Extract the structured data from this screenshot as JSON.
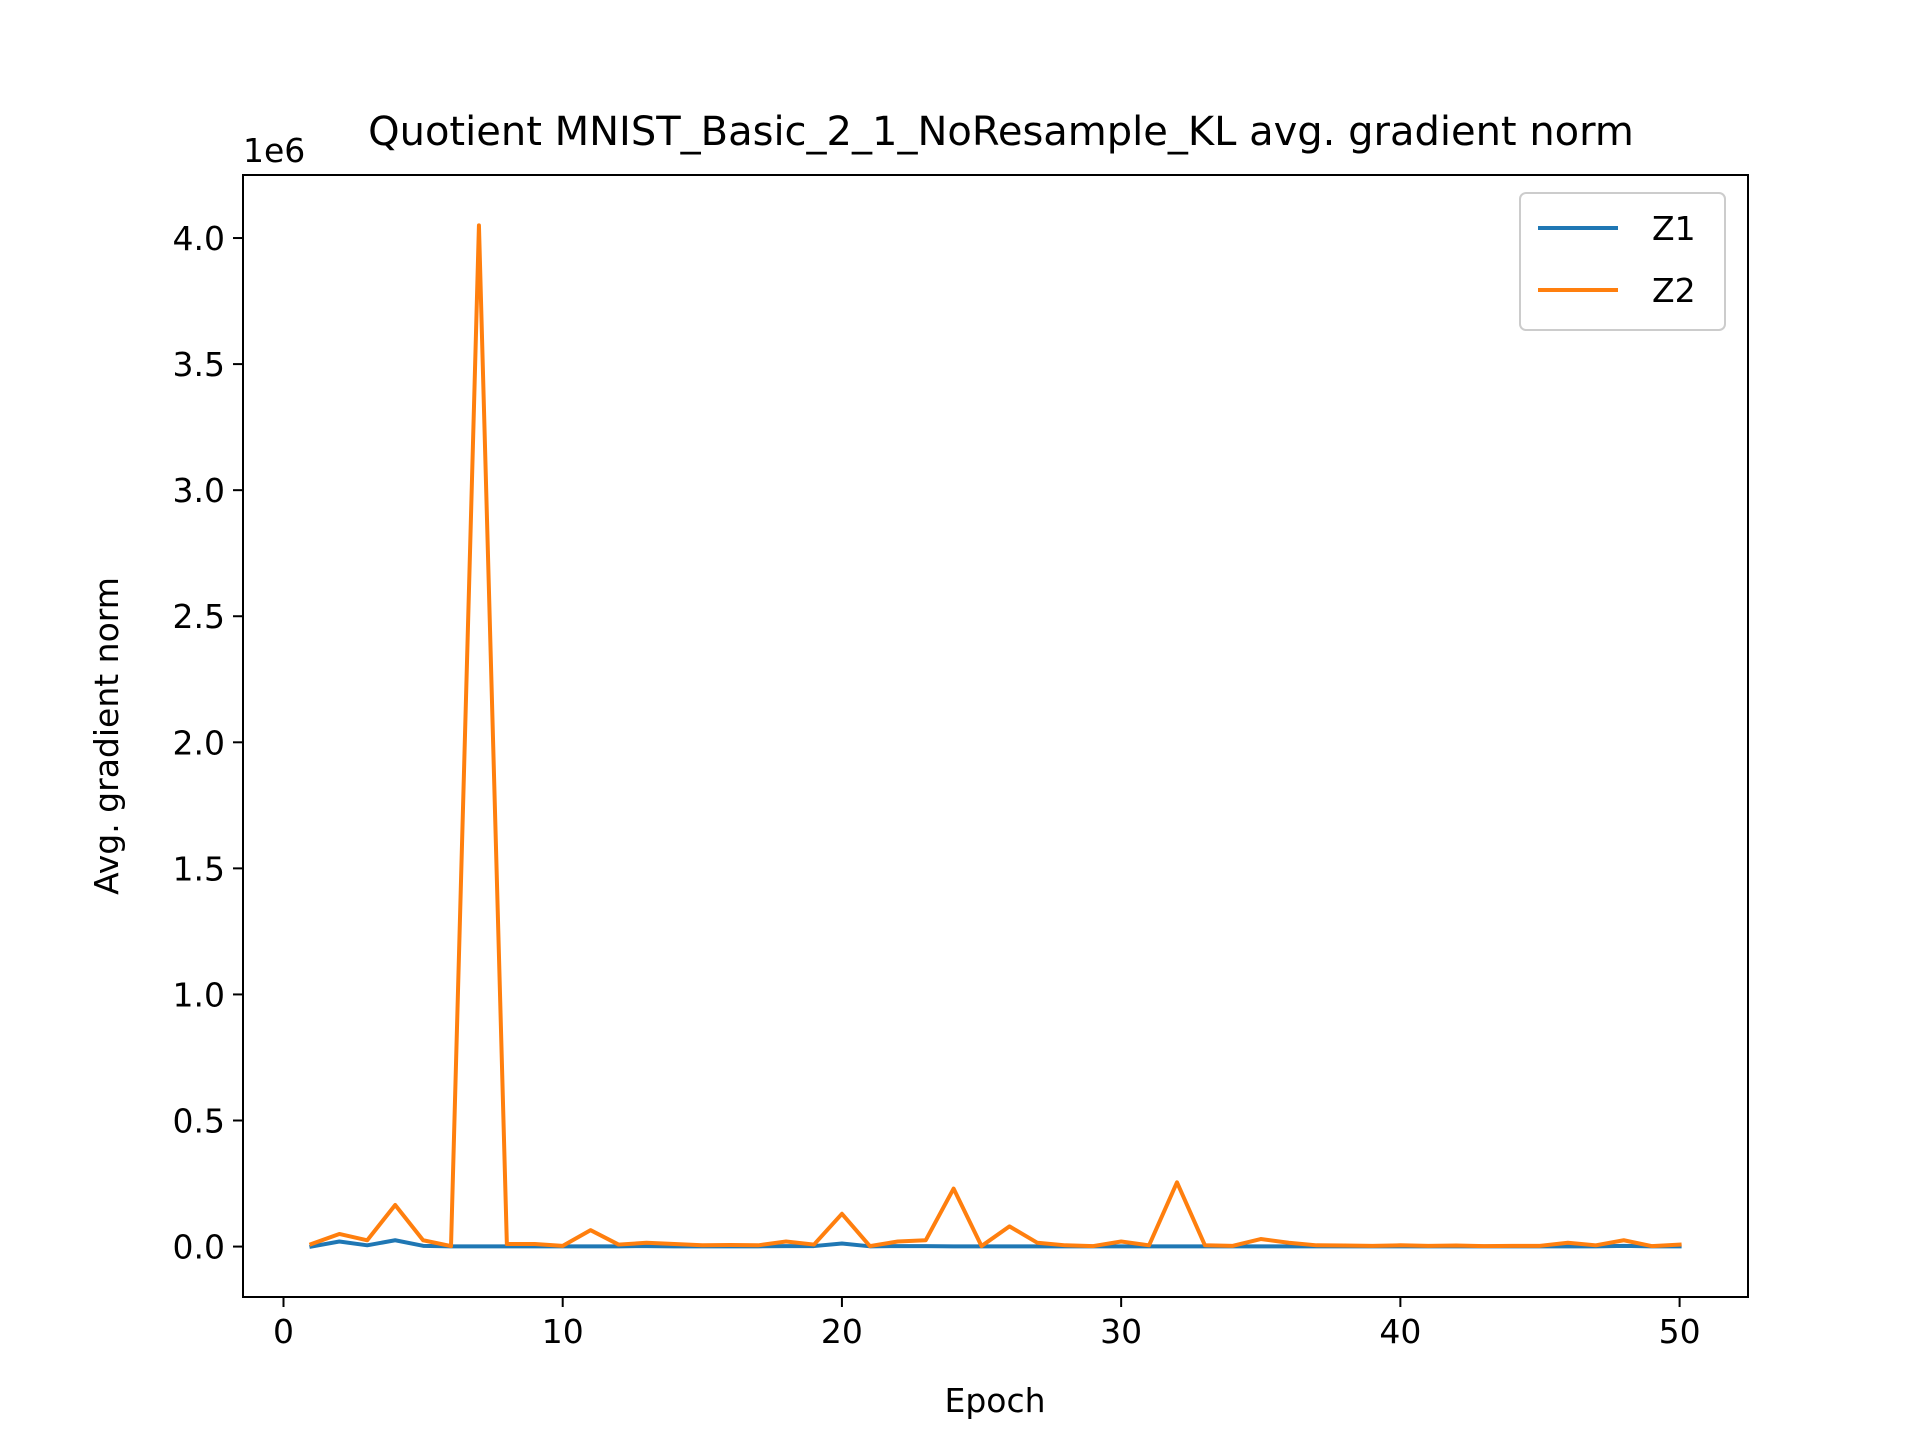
{
  "chart_data": {
    "type": "line",
    "title": "Quotient MNIST_Basic_2_1_NoResample_KL avg. gradient norm",
    "xlabel": "Epoch",
    "ylabel": "Avg. gradient norm",
    "y_scale_label": "1e6",
    "y_multiplier": 1000000,
    "xlim": [
      -1.45,
      52.45
    ],
    "ylim": [
      -0.2,
      4.25
    ],
    "x_ticks": [
      0,
      10,
      20,
      30,
      40,
      50
    ],
    "x_tick_labels": [
      "0",
      "10",
      "20",
      "30",
      "40",
      "50"
    ],
    "y_ticks": [
      0.0,
      0.5,
      1.0,
      1.5,
      2.0,
      2.5,
      3.0,
      3.5,
      4.0
    ],
    "y_tick_labels": [
      "0.0",
      "0.5",
      "1.0",
      "1.5",
      "2.0",
      "2.5",
      "3.0",
      "3.5",
      "4.0"
    ],
    "grid": false,
    "legend_position": "top-right",
    "x": [
      1,
      2,
      3,
      4,
      5,
      6,
      7,
      8,
      9,
      10,
      11,
      12,
      13,
      14,
      15,
      16,
      17,
      18,
      19,
      20,
      21,
      22,
      23,
      24,
      25,
      26,
      27,
      28,
      29,
      30,
      31,
      32,
      33,
      34,
      35,
      36,
      37,
      38,
      39,
      40,
      41,
      42,
      43,
      44,
      45,
      46,
      47,
      48,
      49,
      50
    ],
    "series": [
      {
        "name": "Z1",
        "color": "#1f77b4",
        "values": [
          0.0,
          0.02,
          0.005,
          0.025,
          0.003,
          0.001,
          0.001,
          0.001,
          0.001,
          0.001,
          0.001,
          0.001,
          0.002,
          0.001,
          0.001,
          0.001,
          0.001,
          0.002,
          0.002,
          0.012,
          0.001,
          0.002,
          0.002,
          0.001,
          0.001,
          0.001,
          0.001,
          0.001,
          0.001,
          0.001,
          0.001,
          0.001,
          0.001,
          0.001,
          0.001,
          0.001,
          0.001,
          0.001,
          0.001,
          0.001,
          0.001,
          0.001,
          0.001,
          0.001,
          0.001,
          0.001,
          0.001,
          0.003,
          0.001,
          0.001
        ]
      },
      {
        "name": "Z2",
        "color": "#ff7f0e",
        "values": [
          0.01,
          0.05,
          0.025,
          0.165,
          0.025,
          0.002,
          4.05,
          0.01,
          0.01,
          0.003,
          0.065,
          0.008,
          0.015,
          0.01,
          0.005,
          0.006,
          0.005,
          0.02,
          0.008,
          0.13,
          0.002,
          0.02,
          0.025,
          0.23,
          0.002,
          0.08,
          0.015,
          0.005,
          0.002,
          0.02,
          0.005,
          0.255,
          0.005,
          0.003,
          0.03,
          0.015,
          0.005,
          0.004,
          0.003,
          0.005,
          0.003,
          0.004,
          0.002,
          0.003,
          0.003,
          0.015,
          0.005,
          0.025,
          0.002,
          0.008
        ]
      }
    ]
  }
}
